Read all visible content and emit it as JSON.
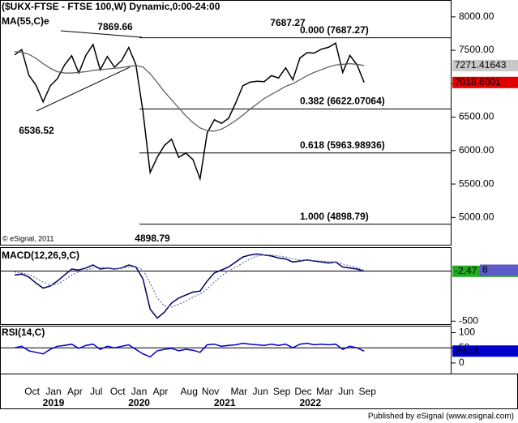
{
  "chart_data": [
    {
      "type": "line",
      "title": "($UKX-FTSE - FTSE 100,W) Dynamic,0:00-24:00",
      "note": "© eSignal, 2011",
      "categories": [
        null,
        null,
        "Oct",
        null,
        null,
        "Jan",
        null,
        null,
        "Apr",
        null,
        null,
        "Jul",
        null,
        null,
        "Oct",
        null,
        null,
        "Jan",
        null,
        null,
        "Apr",
        null,
        null,
        null,
        "Aug",
        null,
        null,
        "Nov",
        null,
        null,
        null,
        "Mar",
        null,
        null,
        "Jun",
        null,
        null,
        "Sep",
        null,
        null,
        "Dec",
        null,
        null,
        "Mar",
        null,
        null,
        "Jun",
        null,
        null,
        "Sep"
      ],
      "year_labels": [
        null,
        null,
        null,
        null,
        null,
        "2019",
        null,
        null,
        null,
        null,
        null,
        null,
        null,
        null,
        null,
        null,
        null,
        "2020",
        null,
        null,
        null,
        null,
        null,
        null,
        null,
        null,
        null,
        null,
        null,
        "2021",
        null,
        null,
        null,
        null,
        null,
        null,
        null,
        null,
        null,
        null,
        null,
        "2022",
        null,
        null,
        null,
        null,
        null,
        null,
        null,
        null
      ],
      "ylim": [
        4592,
        8228
      ],
      "yticks": [
        {
          "value": 8000,
          "label": "8000.00"
        },
        {
          "value": 7500,
          "label": "7500.00"
        },
        {
          "value": 7000,
          "label": "7000.00"
        },
        {
          "value": 6500,
          "label": "6500.00"
        },
        {
          "value": 6000,
          "label": "6000.00"
        },
        {
          "value": 5500,
          "label": "5500.00"
        },
        {
          "value": 5000,
          "label": "5000.00"
        }
      ],
      "series": [
        {
          "color": "#000000",
          "tag_color": "#e00000",
          "tag_text_color": "#ffffff",
          "values": [
            7430,
            7510,
            7128,
            6980,
            6728,
            6968,
            7075,
            7279,
            7418,
            7162,
            7426,
            7587,
            7207,
            7408,
            7248,
            7347,
            7542,
            7286,
            6581,
            5672,
            5901,
            6077,
            6170,
            5898,
            5964,
            5866,
            5577,
            6266,
            6461,
            6407,
            6483,
            6714,
            6970,
            7023,
            7037,
            7032,
            7120,
            7086,
            7238,
            7059,
            7385,
            7464,
            7458,
            7516,
            7545,
            7608,
            7169,
            7423,
            7284,
            7018.6001
          ]
        },
        {
          "name": "MA(55,C)e",
          "color": "#555555",
          "tag_color": "#c8c8c8",
          "tag_text_color": "#000000",
          "values": [
            7480,
            7470,
            7440,
            7380,
            7300,
            7230,
            7180,
            7160,
            7160,
            7170,
            7180,
            7200,
            7210,
            7220,
            7230,
            7240,
            7260,
            7270,
            7250,
            7150,
            7020,
            6880,
            6760,
            6640,
            6520,
            6420,
            6340,
            6300,
            6290,
            6320,
            6380,
            6450,
            6530,
            6620,
            6700,
            6780,
            6840,
            6900,
            6960,
            7000,
            7060,
            7120,
            7170,
            7210,
            7250,
            7280,
            7290,
            7300,
            7290,
            7271.41643
          ]
        }
      ],
      "fib_levels": [
        {
          "value": 7687.27,
          "label": "0.000 (7687.27)",
          "color": "#000000"
        },
        {
          "value": 6622.07064,
          "label": "0.382 (6622.07064)",
          "color": "#b00000"
        },
        {
          "value": 5963.98936,
          "label": "0.618 (5963.98936)",
          "color": "#008000"
        },
        {
          "value": 4898.79,
          "label": "1.000 (4898.79)",
          "color": "#000000"
        }
      ],
      "annotations": [
        7869.66,
        6536.52,
        7687.27,
        4898.79
      ]
    },
    {
      "type": "line",
      "title": "MACD(12,26,9,C)",
      "ylim": [
        -530,
        230
      ],
      "yticks": [
        -500
      ],
      "zero_line": true,
      "series": [
        {
          "color": "#000066",
          "tag_color": "#22aa22",
          "tag_text_color": "#ffffff",
          "values": [
            -40,
            -30,
            -60,
            -120,
            -170,
            -150,
            -100,
            -40,
            20,
            10,
            30,
            60,
            20,
            30,
            20,
            30,
            60,
            40,
            -80,
            -380,
            -470,
            -410,
            -320,
            -270,
            -240,
            -210,
            -200,
            -100,
            -20,
            10,
            40,
            90,
            140,
            160,
            170,
            160,
            150,
            130,
            120,
            90,
            100,
            110,
            100,
            90,
            80,
            90,
            40,
            30,
            20,
            -2.47
          ]
        },
        {
          "color": "#6a6aaa",
          "dashed": true,
          "tag_color": "#5a5ac8",
          "tag_text_color": "#ffffff",
          "values": [
            -10,
            -20,
            -35,
            -70,
            -110,
            -140,
            -130,
            -90,
            -40,
            -10,
            10,
            30,
            35,
            30,
            25,
            28,
            40,
            45,
            10,
            -120,
            -270,
            -350,
            -360,
            -330,
            -300,
            -260,
            -230,
            -180,
            -110,
            -50,
            0,
            40,
            80,
            120,
            150,
            160,
            160,
            150,
            140,
            120,
            110,
            105,
            105,
            100,
            95,
            90,
            70,
            50,
            35,
            8
          ]
        }
      ]
    },
    {
      "type": "line",
      "title": "RSI(14,C)",
      "ylim": [
        -35,
        120
      ],
      "yticks": [
        100,
        50,
        0
      ],
      "series": [
        {
          "color": "#0000cc",
          "tag_color": "#0000cc",
          "tag_text_color": "#ffffff",
          "values": [
            50,
            55,
            40,
            35,
            30,
            45,
            55,
            58,
            62,
            48,
            58,
            62,
            45,
            55,
            50,
            55,
            60,
            45,
            30,
            20,
            40,
            45,
            48,
            40,
            45,
            42,
            35,
            60,
            62,
            55,
            58,
            60,
            65,
            62,
            60,
            58,
            62,
            58,
            62,
            50,
            62,
            65,
            60,
            62,
            60,
            62,
            45,
            55,
            50,
            39.14
          ]
        }
      ]
    }
  ],
  "footer": "Published by eSignal (www.esignal.com)"
}
